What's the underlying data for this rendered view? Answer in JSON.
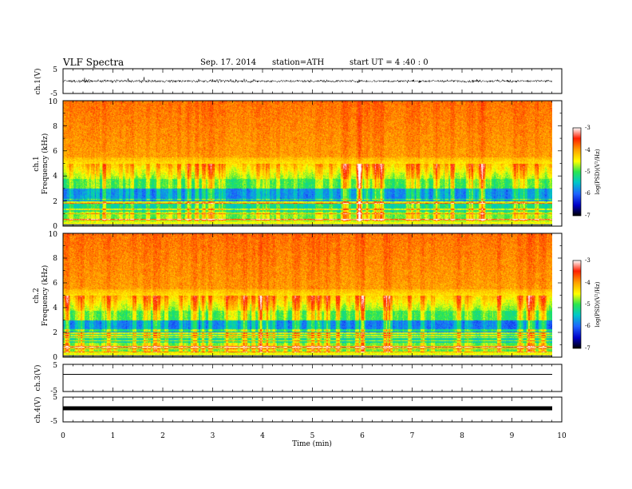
{
  "header": {
    "title": "VLF  Spectra",
    "date": "Sep. 17. 2014",
    "station": "station=ATH",
    "start": "start  UT  =   4  :40 : 0"
  },
  "chart_data": {
    "type": "heatmap",
    "xlabel": "Time  (min)",
    "xlim": [
      0,
      10
    ],
    "xticks": [
      "0",
      "1",
      "2",
      "3",
      "4",
      "5",
      "6",
      "7",
      "8",
      "9",
      "10"
    ],
    "panels": [
      {
        "id": "ch1-waveform",
        "ylabel": "ch.1(V)",
        "ylim": [
          -5,
          5
        ],
        "yticks": [
          "5",
          "-5"
        ],
        "trace": "noisy waveform, amplitude about ±1.5 V, data ends at about 9.8 min"
      },
      {
        "id": "ch1-spectrogram",
        "ylabel": "ch.1\nFrequency  (kHz)",
        "ylabel_lines": [
          "ch.1",
          "Frequency  (kHz)"
        ],
        "ylim": [
          0,
          10
        ],
        "yticks": [
          "0",
          "2",
          "4",
          "6",
          "8",
          "10"
        ],
        "data_end_min": 9.8,
        "colorbar": {
          "label": "log(PSD)(V²/Hz)",
          "ticks": [
            "-3",
            "-4",
            "-5",
            "-6",
            "-7"
          ],
          "range": [
            -7,
            -3
          ]
        }
      },
      {
        "id": "ch2-spectrogram",
        "ylabel": "ch.2\nFrequency  (kHz)",
        "ylabel_lines": [
          "ch.2",
          "Frequency  (kHz)"
        ],
        "ylim": [
          0,
          10
        ],
        "yticks": [
          "0",
          "2",
          "4",
          "6",
          "8",
          "10"
        ],
        "data_end_min": 9.8,
        "colorbar": {
          "label": "log(PSD)(V²/Hz)",
          "ticks": [
            "-3",
            "-4",
            "-5",
            "-6",
            "-7"
          ],
          "range": [
            -7,
            -3
          ]
        }
      },
      {
        "id": "ch3-waveform",
        "ylabel": "ch.3(V)",
        "ylim": [
          -5,
          5
        ],
        "yticks": [
          "5",
          "-5"
        ],
        "trace": "thin nearly flat line at about 0 V"
      },
      {
        "id": "ch4-waveform",
        "ylabel": "ch.4(V)",
        "ylim": [
          -5,
          5
        ],
        "yticks": [
          "5",
          "-5"
        ],
        "trace": "thick flat line at about 0 V"
      }
    ],
    "colors": {
      "colormap": [
        "#000000",
        "#0000c8",
        "#1e64ff",
        "#00c8c8",
        "#28e650",
        "#ffff00",
        "#ffa000",
        "#ff1e00",
        "#ffffff"
      ]
    }
  }
}
